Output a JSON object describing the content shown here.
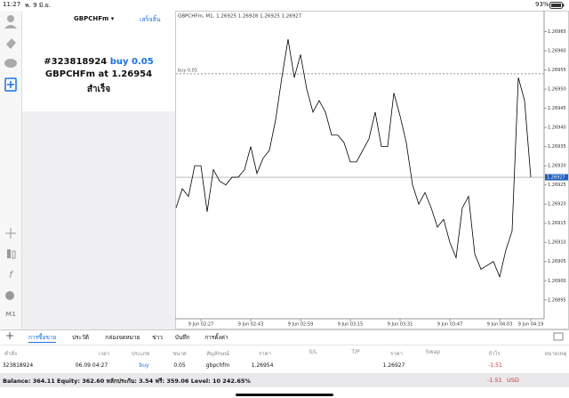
{
  "status_bar": {
    "time": "11:27",
    "date": "พ. 9 มิ.ย.",
    "battery": "93%"
  },
  "sidebar": {
    "timeframe": "M1"
  },
  "panel": {
    "symbol": "GBPCHFm ▾",
    "done": "เสร็จสิ้น",
    "order_id": "#323818924",
    "order_action": "buy 0.05",
    "order_symbol": "GBPCHFm at",
    "order_price": "1.26954",
    "status": "สำเร็จ"
  },
  "chart_data": {
    "type": "line",
    "title": "GBPCHFm, M1, 1.26925 1.26928 1.26925 1.26927",
    "color": "#000000",
    "categories": [
      null,
      null,
      null,
      null,
      "9 Jun 02:27",
      null,
      null,
      null,
      null,
      null,
      null,
      null,
      "9 Jun 02:43",
      null,
      null,
      null,
      null,
      null,
      null,
      null,
      "9 Jun 02:59",
      null,
      null,
      null,
      null,
      null,
      null,
      null,
      "9 Jun 03:15",
      null,
      null,
      null,
      null,
      null,
      null,
      null,
      "9 Jun 03:31",
      null,
      null,
      null,
      null,
      null,
      null,
      null,
      "9 Jun 03:47",
      null,
      null,
      null,
      null,
      null,
      null,
      null,
      "9 Jun 04:03",
      null,
      null,
      null,
      null,
      "9 Jun 04:19"
    ],
    "values": [
      1.26919,
      1.26924,
      1.26922,
      1.2693,
      1.2693,
      1.26918,
      1.26929,
      1.26926,
      1.26925,
      1.26927,
      1.26927,
      1.26929,
      1.26935,
      1.26928,
      1.26932,
      1.26934,
      1.26942,
      1.26953,
      1.26963,
      1.26953,
      1.26959,
      1.2695,
      1.26944,
      1.26947,
      1.26944,
      1.26938,
      1.26938,
      1.26936,
      1.26931,
      1.26931,
      1.26934,
      1.26937,
      1.26944,
      1.26935,
      1.26935,
      1.26949,
      1.26943,
      1.26936,
      1.26925,
      1.2692,
      1.26923,
      1.26919,
      1.26914,
      1.26916,
      1.2691,
      1.26906,
      1.26919,
      1.26922,
      1.26907,
      1.26903,
      1.26904,
      1.26905,
      1.26901,
      1.26908,
      1.26913,
      1.26953,
      1.26947,
      1.26927
    ],
    "ylim": [
      1.26891,
      1.2697
    ],
    "yticks": [
      1.26895,
      {
        "value": 1.269,
        "label": "1.26900"
      },
      1.26905,
      {
        "value": 1.2691,
        "label": "1.26910"
      },
      1.26915,
      {
        "value": 1.2692,
        "label": "1.26920"
      },
      1.26925,
      {
        "value": 1.2693,
        "label": "1.26930"
      },
      1.26935,
      {
        "value": 1.2694,
        "label": "1.26940"
      },
      1.26945,
      {
        "value": 1.2695,
        "label": "1.26950"
      },
      1.26955,
      {
        "value": 1.2696,
        "label": "1.26960"
      },
      1.26965
    ],
    "grid": false,
    "order_line": {
      "label": "buy 0.05",
      "value": 1.26954
    },
    "current_price": 1.26927
  },
  "tabs": [
    "การซื้อขาย",
    "ประวัติ",
    "กล่องจดหมาย",
    "ข่าว",
    "บันทึก",
    "การตั้งค่า"
  ],
  "active_tab": 0,
  "table": {
    "columns": [
      "คำสั่ง",
      "เวลา",
      "ประเภท",
      "ขนาด",
      "สัญลักษณ์",
      "ราคา",
      "S/L",
      "T/P",
      "ราคา",
      "Swap",
      "กำไร",
      "หมายเหตุ"
    ],
    "rows": [
      {
        "order": "323818924",
        "time": "06.09 04:27",
        "type": "buy",
        "size": "0.05",
        "symbol": "gbpchfm",
        "price": "1.26954",
        "current": "1.26927",
        "profit": "-1.51"
      }
    ]
  },
  "footer": {
    "summary": "Balance: 364.11 Equity: 362.60 หลักประกัน: 3.54 ฟรี: 359.06 Level: 10 242.65%",
    "profit": "-1.51",
    "currency": "USD"
  }
}
